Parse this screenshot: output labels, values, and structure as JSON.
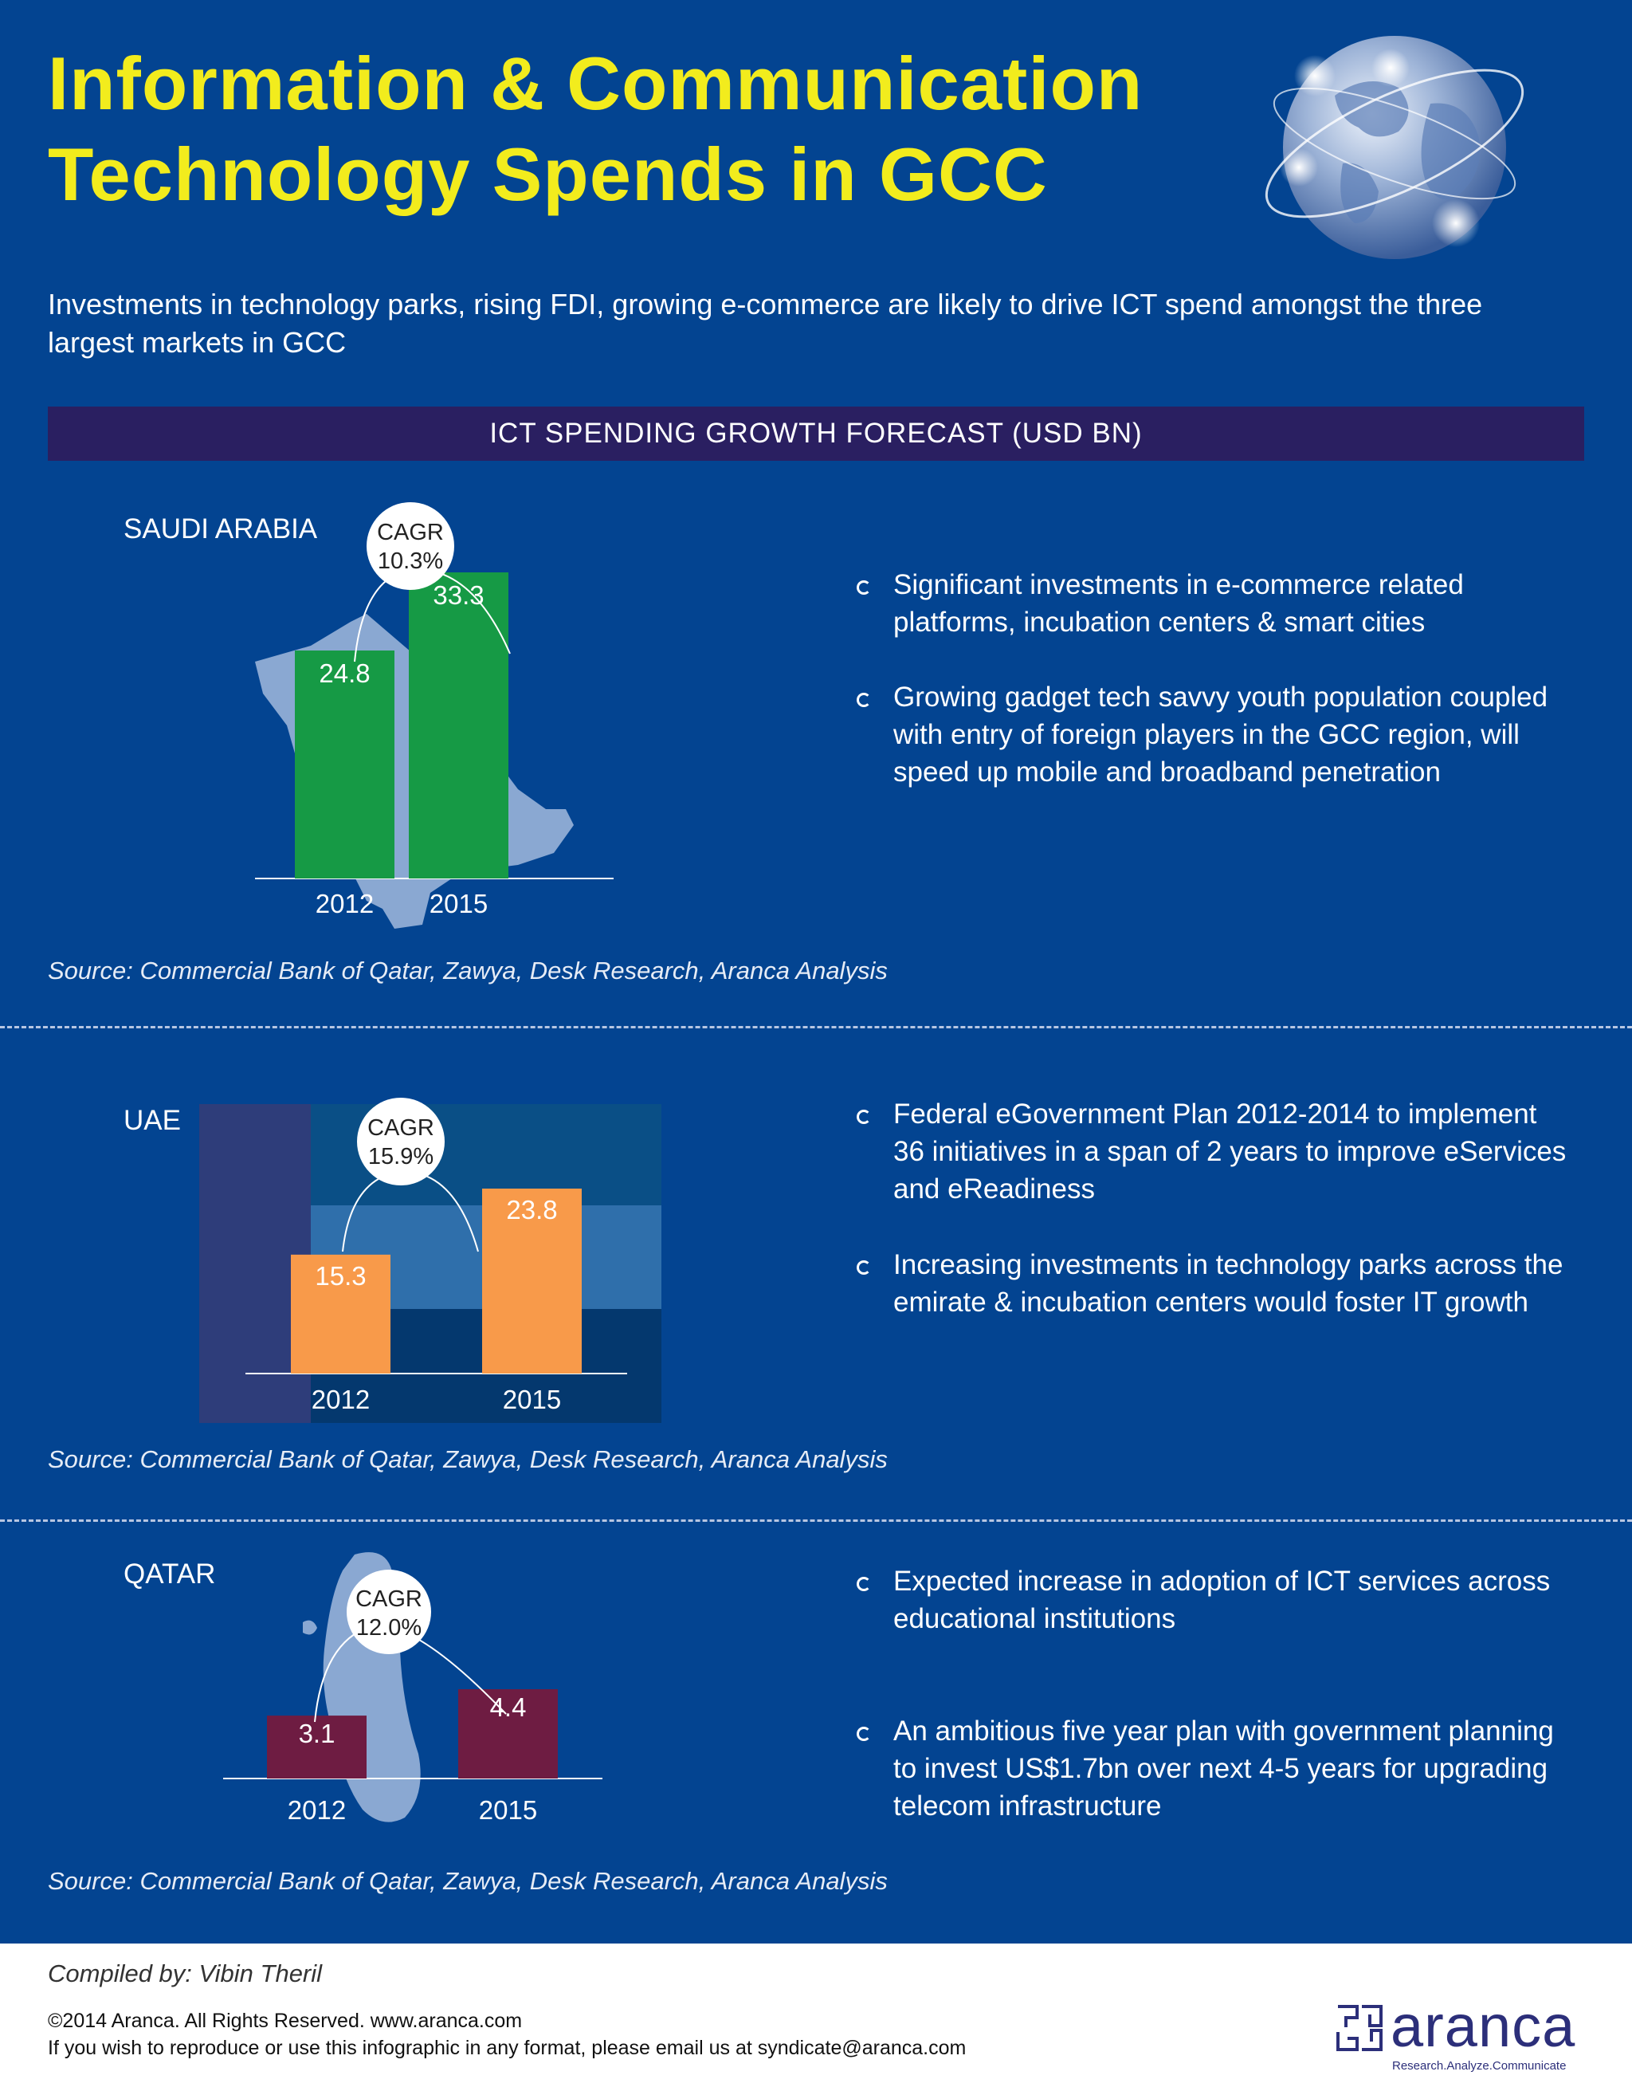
{
  "header": {
    "title_line1": "Information & Communication",
    "title_line2": "Technology  Spends in GCC",
    "subtitle": "Investments in technology parks, rising FDI, growing e-commerce are likely to drive ICT spend amongst the three largest markets in GCC",
    "banner": "ICT SPENDING GROWTH FORECAST (USD BN)",
    "globe_icon": "globe-network-icon"
  },
  "colors": {
    "background": "#034491",
    "title": "#f2ec1d",
    "banner": "#2a1f61",
    "saudi_bar": "#169a45",
    "uae_bar": "#f89a4a",
    "qatar_bar": "#6e1c42",
    "map": "#8aa8d2"
  },
  "sections": {
    "saudi": {
      "country": "SAUDI ARABIA",
      "source": "Source: Commercial Bank of Qatar, Zawya, Desk Research, Aranca Analysis",
      "bullets": [
        "Significant investments in e-commerce related platforms, incubation centers & smart cities",
        "Growing gadget tech savvy youth population coupled with entry of foreign players in the GCC region, will speed up mobile and broadband penetration"
      ]
    },
    "uae": {
      "country": "UAE",
      "source": "Source: Commercial Bank of Qatar, Zawya, Desk Research, Aranca Analysis",
      "bullets": [
        "Federal eGovernment Plan 2012-2014 to implement 36 initiatives in a span of 2 years to improve eServices and eReadiness",
        "Increasing investments in technology parks across the emirate & incubation centers would foster IT growth"
      ]
    },
    "qatar": {
      "country": "QATAR",
      "source": "Source: Commercial Bank of Qatar, Zawya, Desk Research, Aranca Analysis",
      "bullets": [
        "Expected increase in adoption of ICT services across educational institutions",
        "An ambitious five year plan with government planning to invest US$1.7bn over next 4-5 years for upgrading telecom infrastructure"
      ]
    }
  },
  "chart_data": [
    {
      "type": "bar",
      "country": "SAUDI ARABIA",
      "categories": [
        "2012",
        "2015"
      ],
      "values": [
        24.8,
        33.3
      ],
      "value_labels": [
        "24.8",
        "33.3"
      ],
      "cagr_label": "CAGR",
      "cagr_value": "10.3%",
      "ylim": [
        0,
        33.3
      ],
      "color": "#169a45"
    },
    {
      "type": "bar",
      "country": "UAE",
      "categories": [
        "2012",
        "2015"
      ],
      "values": [
        15.3,
        23.8
      ],
      "value_labels": [
        "15.3",
        "23.8"
      ],
      "cagr_label": "CAGR",
      "cagr_value": "15.9%",
      "ylim": [
        0,
        23.8
      ],
      "color": "#f89a4a"
    },
    {
      "type": "bar",
      "country": "QATAR",
      "categories": [
        "2012",
        "2015"
      ],
      "values": [
        3.1,
        4.4
      ],
      "value_labels": [
        "3.1",
        "4.4"
      ],
      "cagr_label": "CAGR",
      "cagr_value": "12.0%",
      "ylim": [
        0,
        4.4
      ],
      "color": "#6e1c42"
    }
  ],
  "footer": {
    "compiled_by": "Compiled by: Vibin Theril",
    "copyright": "©2014 Aranca. All Rights Reserved. www.aranca.com",
    "reproduce_note": "If you wish to reproduce or use this infographic in any format, please email us at syndicate@aranca.com",
    "logo_text": "aranca",
    "logo_tagline": "Research.Analyze.Communicate"
  }
}
